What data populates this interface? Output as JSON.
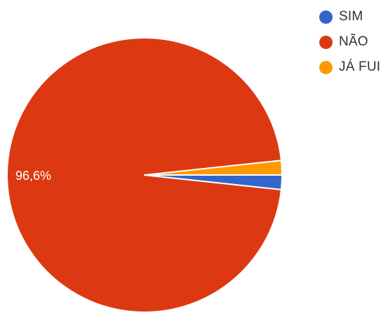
{
  "chart_data": {
    "type": "pie",
    "slices": [
      {
        "label": "SIM",
        "value": 1.7,
        "color": "#3366cc"
      },
      {
        "label": "NÃO",
        "value": 96.6,
        "color": "#dc3912",
        "data_label": "96,6%"
      },
      {
        "label": "JÁ FUI",
        "value": 1.7,
        "color": "#ff9900"
      }
    ],
    "legend_position": "top-right",
    "start_direction": "east"
  }
}
